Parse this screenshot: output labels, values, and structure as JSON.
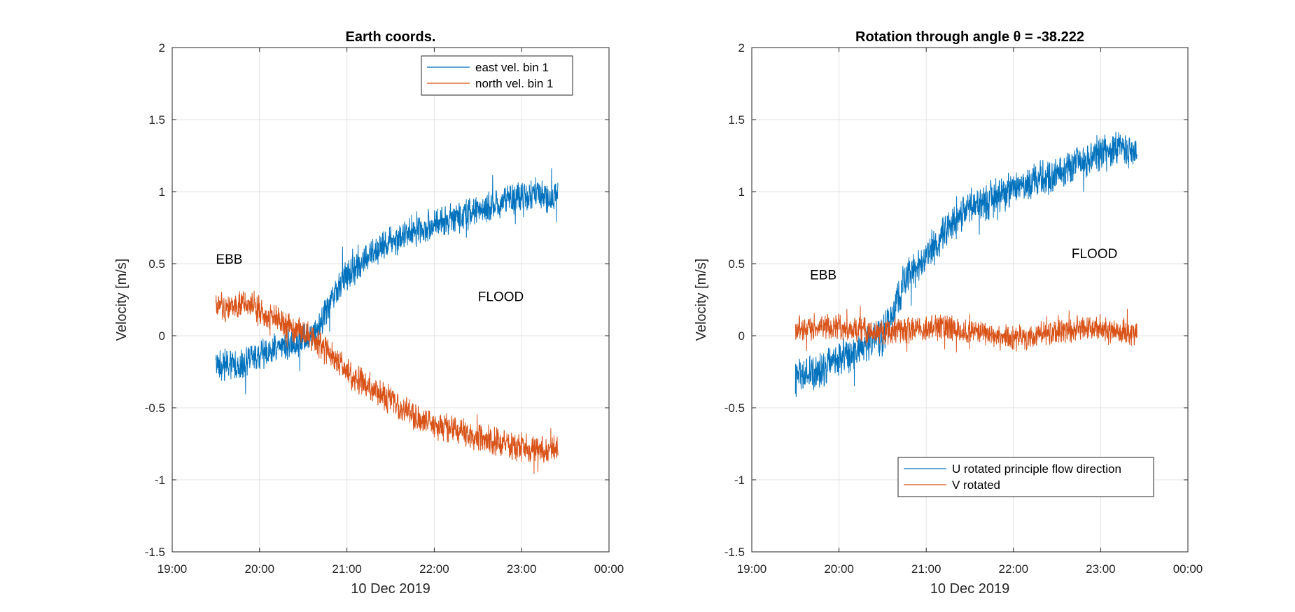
{
  "figure": {
    "background": "#ffffff",
    "grid": true
  },
  "colors": {
    "series_blue": "#0072BD",
    "series_orange": "#D95319",
    "axis": "#262626",
    "grid": "#e3e3e3"
  },
  "chart_data": [
    {
      "type": "line",
      "title": "Earth coords.",
      "xlabel": "10 Dec 2019",
      "ylabel": "Velocity [m/s]",
      "xlim": [
        "19:00",
        "00:00"
      ],
      "ylim": [
        -1.5,
        2
      ],
      "x_tick_labels": [
        "19:00",
        "20:00",
        "21:00",
        "22:00",
        "23:00",
        "00:00"
      ],
      "y_tick_labels": [
        "-1.5",
        "-1",
        "-0.5",
        "0",
        "0.5",
        "1",
        "1.5",
        "2"
      ],
      "legend_position": "top-right",
      "annotations": [
        {
          "text": "EBB",
          "x": "19:30",
          "y": 0.5
        },
        {
          "text": "FLOOD",
          "x": "22:30",
          "y": 0.24
        }
      ],
      "series": [
        {
          "name": "east vel. bin 1",
          "color": "#0072BD",
          "x": [
            "19:30",
            "19:45",
            "20:00",
            "20:15",
            "20:30",
            "20:40",
            "20:50",
            "21:00",
            "21:15",
            "21:30",
            "21:45",
            "22:00",
            "22:15",
            "22:30",
            "22:45",
            "23:00",
            "23:15",
            "23:25"
          ],
          "values": [
            -0.2,
            -0.2,
            -0.14,
            -0.08,
            -0.02,
            0.05,
            0.28,
            0.42,
            0.55,
            0.65,
            0.72,
            0.78,
            0.82,
            0.87,
            0.92,
            0.97,
            0.97,
            0.95
          ],
          "noise": 0.12
        },
        {
          "name": "north vel. bin 1",
          "color": "#D95319",
          "x": [
            "19:30",
            "19:45",
            "20:00",
            "20:15",
            "20:30",
            "20:40",
            "20:50",
            "21:00",
            "21:15",
            "21:30",
            "21:45",
            "22:00",
            "22:15",
            "22:30",
            "22:45",
            "23:00",
            "23:15",
            "23:25"
          ],
          "values": [
            0.2,
            0.21,
            0.18,
            0.1,
            0.02,
            -0.05,
            -0.15,
            -0.25,
            -0.35,
            -0.45,
            -0.55,
            -0.62,
            -0.66,
            -0.7,
            -0.74,
            -0.78,
            -0.8,
            -0.78
          ],
          "noise": 0.11
        }
      ]
    },
    {
      "type": "line",
      "title": "Rotation through angle θ = -38.222",
      "xlabel": "10 Dec 2019",
      "ylabel": "Velocity [m/s]",
      "xlim": [
        "19:00",
        "00:00"
      ],
      "ylim": [
        -1.5,
        2
      ],
      "x_tick_labels": [
        "19:00",
        "20:00",
        "21:00",
        "22:00",
        "23:00",
        "00:00"
      ],
      "y_tick_labels": [
        "-1.5",
        "-1",
        "-0.5",
        "0",
        "0.5",
        "1",
        "1.5",
        "2"
      ],
      "legend_position": "bottom-right",
      "annotations": [
        {
          "text": "EBB",
          "x": "19:40",
          "y": 0.39
        },
        {
          "text": "FLOOD",
          "x": "22:40",
          "y": 0.54
        }
      ],
      "series": [
        {
          "name": "U rotated principle flow direction",
          "color": "#0072BD",
          "x": [
            "19:30",
            "19:45",
            "20:00",
            "20:15",
            "20:30",
            "20:37",
            "20:45",
            "21:00",
            "21:15",
            "21:30",
            "21:45",
            "22:00",
            "22:15",
            "22:30",
            "22:45",
            "23:00",
            "23:15",
            "23:25"
          ],
          "values": [
            -0.3,
            -0.25,
            -0.15,
            -0.08,
            0.0,
            0.15,
            0.38,
            0.55,
            0.75,
            0.88,
            0.95,
            1.03,
            1.08,
            1.13,
            1.18,
            1.28,
            1.32,
            1.25
          ],
          "noise": 0.14
        },
        {
          "name": "V rotated",
          "color": "#D95319",
          "x": [
            "19:30",
            "19:45",
            "20:00",
            "20:15",
            "20:30",
            "20:45",
            "21:00",
            "21:15",
            "21:30",
            "21:45",
            "22:00",
            "22:15",
            "22:30",
            "22:45",
            "23:00",
            "23:15",
            "23:25"
          ],
          "values": [
            0.05,
            0.06,
            0.06,
            0.04,
            0.02,
            0.05,
            0.06,
            0.05,
            0.03,
            0.0,
            -0.02,
            0.0,
            0.03,
            0.05,
            0.05,
            0.03,
            0.0
          ],
          "noise": 0.1
        }
      ]
    }
  ]
}
